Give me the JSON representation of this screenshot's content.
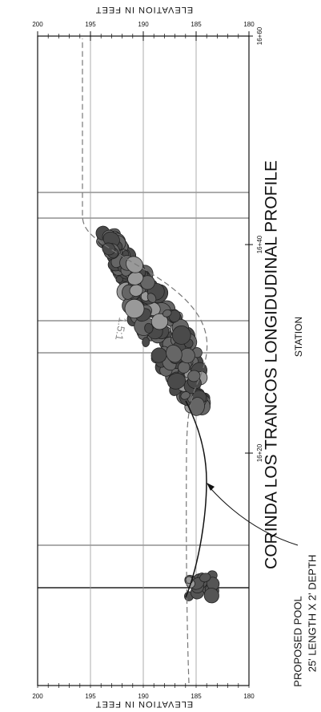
{
  "title": "CORINDA LOS TRANCOS LONGIDUDINAL PROFILE",
  "x_axis": {
    "label": "STATION",
    "range": [
      1597.7,
      1660
    ],
    "ticks": [
      {
        "value": 1620,
        "label": "16+20"
      },
      {
        "value": 1640,
        "label": "16+40"
      },
      {
        "value": 1660,
        "label": "16+60"
      }
    ]
  },
  "y_axis": {
    "label": "ELEVATION IN FEET",
    "range": [
      180,
      200
    ],
    "ticks": [
      200,
      195,
      190,
      185,
      180
    ]
  },
  "slope_label": "1.5:1",
  "annotation": {
    "lines": [
      "PROPOSED POOL",
      "25' LENGTH X 2' DEPTH"
    ]
  }
}
